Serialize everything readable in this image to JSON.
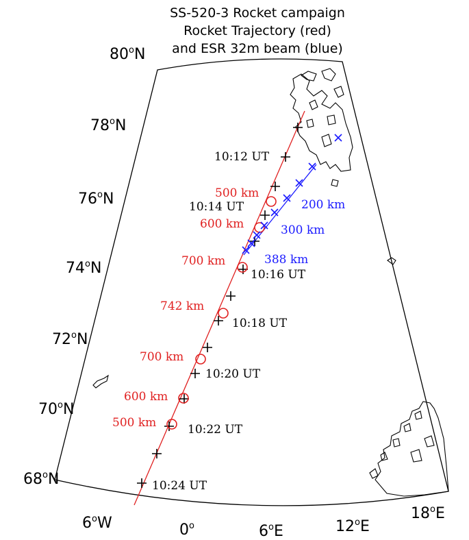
{
  "title": {
    "line1": "SS-520-3 Rocket campaign",
    "line2": "Rocket Trajectory (red)",
    "line3": "and ESR 32m beam (blue)"
  },
  "colors": {
    "trajectory": "#e02020",
    "beam": "#1a1aff",
    "frame": "#000000"
  },
  "lat_labels": [
    {
      "value": "80",
      "unit": "N"
    },
    {
      "value": "78",
      "unit": "N"
    },
    {
      "value": "76",
      "unit": "N"
    },
    {
      "value": "74",
      "unit": "N"
    },
    {
      "value": "72",
      "unit": "N"
    },
    {
      "value": "70",
      "unit": "N"
    },
    {
      "value": "68",
      "unit": "N"
    }
  ],
  "lon_labels": [
    {
      "value": "6",
      "unit": "W"
    },
    {
      "value": "0",
      "unit": ""
    },
    {
      "value": "6",
      "unit": "E"
    },
    {
      "value": "12",
      "unit": "E"
    },
    {
      "value": "18",
      "unit": "E"
    }
  ],
  "altitude_labels": [
    {
      "text": "500 km"
    },
    {
      "text": "600 km"
    },
    {
      "text": "700 km"
    },
    {
      "text": "742 km"
    },
    {
      "text": "700 km"
    },
    {
      "text": "600 km"
    },
    {
      "text": "500 km"
    }
  ],
  "time_labels": [
    {
      "text": "10:12 UT"
    },
    {
      "text": "10:14 UT"
    },
    {
      "text": "10:16 UT"
    },
    {
      "text": "10:18 UT"
    },
    {
      "text": "10:20 UT"
    },
    {
      "text": "10:22 UT"
    },
    {
      "text": "10:24 UT"
    }
  ],
  "beam_labels": [
    {
      "text": "200 km"
    },
    {
      "text": "300 km"
    },
    {
      "text": "388 km"
    }
  ],
  "icons": {
    "trajectory_marker": "plus",
    "altitude_marker": "circle",
    "beam_marker": "x-cross"
  }
}
